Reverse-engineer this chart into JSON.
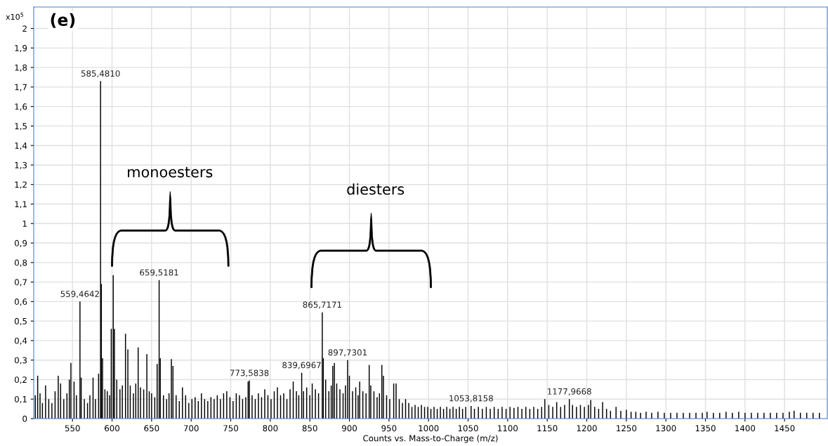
{
  "chart_data": {
    "type": "bar",
    "xlabel": "Counts vs. Mass-to-Charge (m/z)",
    "x": [
      503,
      506,
      509,
      512,
      516,
      520,
      524,
      528,
      532,
      535,
      539,
      543,
      546,
      548,
      552,
      555,
      559.4642,
      561,
      565,
      569,
      572,
      576,
      579,
      583,
      585.481,
      586.5,
      588,
      591,
      594,
      597,
      599,
      601.5,
      603,
      606,
      610,
      613,
      617,
      620,
      623,
      627,
      630,
      633,
      636,
      640,
      644,
      647,
      650,
      654,
      657,
      659.5181,
      661,
      665,
      669,
      672,
      675,
      677,
      681,
      685,
      689,
      693,
      697,
      701,
      705,
      709,
      713,
      717,
      721,
      725,
      729,
      733,
      737,
      741,
      745,
      749,
      753,
      757,
      761,
      765,
      769,
      772,
      773.5838,
      777,
      781,
      785,
      789,
      793,
      797,
      801,
      805,
      809,
      813,
      817,
      821,
      825,
      829,
      833,
      836,
      839.6967,
      842,
      846,
      850,
      853,
      857,
      861,
      865.7171,
      867,
      870,
      874,
      877,
      879,
      881,
      884,
      888,
      892,
      895,
      897.7301,
      900,
      904,
      908,
      911,
      913,
      917,
      921,
      925,
      927,
      931,
      935,
      938,
      941,
      943,
      947,
      951,
      956,
      959,
      963,
      967,
      971,
      975,
      979,
      983,
      987,
      991,
      995,
      999,
      1003,
      1007,
      1011,
      1015,
      1019,
      1023,
      1027,
      1031,
      1035,
      1039,
      1043,
      1047,
      1053.8158,
      1058,
      1063,
      1068,
      1073,
      1078,
      1083,
      1088,
      1093,
      1098,
      1103,
      1108,
      1113,
      1118,
      1123,
      1128,
      1133,
      1138,
      1143,
      1147,
      1152,
      1157,
      1162,
      1167,
      1172,
      1177.9668,
      1182,
      1187,
      1192,
      1197,
      1202,
      1205,
      1210,
      1215,
      1220,
      1225,
      1230,
      1237,
      1243,
      1250,
      1256,
      1262,
      1268,
      1275,
      1282,
      1290,
      1298,
      1306,
      1314,
      1322,
      1330,
      1338,
      1346,
      1352,
      1360,
      1368,
      1376,
      1384,
      1392,
      1400,
      1408,
      1416,
      1424,
      1432,
      1440,
      1448,
      1456,
      1462,
      1470,
      1478,
      1486,
      1494
    ],
    "values": [
      0.12,
      0.22,
      0.13,
      0.08,
      0.17,
      0.1,
      0.08,
      0.14,
      0.22,
      0.18,
      0.1,
      0.13,
      0.2,
      0.285,
      0.19,
      0.12,
      0.6,
      0.21,
      0.1,
      0.08,
      0.12,
      0.21,
      0.1,
      0.23,
      1.73,
      0.69,
      0.31,
      0.15,
      0.14,
      0.12,
      0.46,
      0.735,
      0.46,
      0.2,
      0.15,
      0.17,
      0.435,
      0.355,
      0.17,
      0.13,
      0.18,
      0.365,
      0.16,
      0.15,
      0.33,
      0.14,
      0.13,
      0.11,
      0.28,
      0.71,
      0.31,
      0.12,
      0.1,
      0.13,
      0.305,
      0.27,
      0.12,
      0.09,
      0.16,
      0.12,
      0.08,
      0.1,
      0.11,
      0.09,
      0.13,
      0.1,
      0.09,
      0.11,
      0.1,
      0.12,
      0.1,
      0.13,
      0.14,
      0.11,
      0.09,
      0.13,
      0.12,
      0.1,
      0.11,
      0.19,
      0.195,
      0.12,
      0.1,
      0.13,
      0.11,
      0.15,
      0.12,
      0.1,
      0.14,
      0.16,
      0.12,
      0.13,
      0.1,
      0.15,
      0.19,
      0.14,
      0.12,
      0.235,
      0.14,
      0.16,
      0.12,
      0.18,
      0.15,
      0.13,
      0.545,
      0.31,
      0.2,
      0.14,
      0.17,
      0.27,
      0.285,
      0.18,
      0.15,
      0.13,
      0.17,
      0.3,
      0.22,
      0.14,
      0.16,
      0.12,
      0.19,
      0.14,
      0.13,
      0.275,
      0.17,
      0.14,
      0.11,
      0.13,
      0.275,
      0.22,
      0.12,
      0.1,
      0.18,
      0.18,
      0.1,
      0.08,
      0.1,
      0.08,
      0.06,
      0.07,
      0.06,
      0.07,
      0.06,
      0.06,
      0.05,
      0.06,
      0.05,
      0.06,
      0.05,
      0.06,
      0.05,
      0.06,
      0.05,
      0.06,
      0.05,
      0.06,
      0.065,
      0.05,
      0.06,
      0.05,
      0.06,
      0.05,
      0.06,
      0.05,
      0.06,
      0.05,
      0.06,
      0.055,
      0.06,
      0.05,
      0.06,
      0.05,
      0.06,
      0.05,
      0.06,
      0.1,
      0.07,
      0.06,
      0.085,
      0.06,
      0.07,
      0.1,
      0.07,
      0.06,
      0.07,
      0.06,
      0.07,
      0.095,
      0.06,
      0.05,
      0.085,
      0.05,
      0.04,
      0.06,
      0.04,
      0.045,
      0.035,
      0.035,
      0.03,
      0.035,
      0.03,
      0.035,
      0.03,
      0.03,
      0.03,
      0.03,
      0.03,
      0.03,
      0.03,
      0.035,
      0.03,
      0.03,
      0.035,
      0.03,
      0.035,
      0.03,
      0.03,
      0.03,
      0.03,
      0.03,
      0.03,
      0.03,
      0.035,
      0.04,
      0.03,
      0.03,
      0.03,
      0.03
    ],
    "color": "#000000",
    "xlim": [
      501,
      1504
    ],
    "xticks": [
      550,
      600,
      650,
      700,
      750,
      800,
      850,
      900,
      950,
      1000,
      1050,
      1100,
      1150,
      1200,
      1250,
      1300,
      1350,
      1400,
      1450
    ],
    "ylim": [
      0,
      2.11
    ],
    "yticks": [
      0,
      {
        "value": 0.1,
        "label": "0,1"
      },
      {
        "value": 0.2,
        "label": "0,2"
      },
      {
        "value": 0.3,
        "label": "0,3"
      },
      {
        "value": 0.4,
        "label": "0,4"
      },
      {
        "value": 0.5,
        "label": "0,5"
      },
      {
        "value": 0.6,
        "label": "0,6"
      },
      {
        "value": 0.7,
        "label": "0,7"
      },
      {
        "value": 0.8,
        "label": "0,8"
      },
      {
        "value": 0.9,
        "label": "0,9"
      },
      1,
      {
        "value": 1.1,
        "label": "1,1"
      },
      {
        "value": 1.2,
        "label": "1,2"
      },
      {
        "value": 1.3,
        "label": "1,3"
      },
      {
        "value": 1.4,
        "label": "1,4"
      },
      {
        "value": 1.5,
        "label": "1,5"
      },
      {
        "value": 1.6,
        "label": "1,6"
      },
      {
        "value": 1.7,
        "label": "1,7"
      },
      {
        "value": 1.8,
        "label": "1,8"
      },
      {
        "value": 1.9,
        "label": "1,9"
      },
      2
    ],
    "grid": true,
    "legend": false,
    "annotations": [
      "(e)",
      "x10$^{5}$",
      "monoesters",
      "diesters",
      {
        "text": "559,4642",
        "x": 559.4642,
        "y": 0.6
      },
      {
        "text": "585,4810",
        "x": 585.481,
        "y": 1.73
      },
      {
        "text": "659,5181",
        "x": 659.5181,
        "y": 0.71
      },
      {
        "text": "773,5838",
        "x": 773.5838,
        "y": 0.195
      },
      {
        "text": "839,6967",
        "x": 839.6967,
        "y": 0.235
      },
      {
        "text": "865,7171",
        "x": 865.7171,
        "y": 0.545
      },
      {
        "text": "897,7301",
        "x": 897.7301,
        "y": 0.3
      },
      {
        "text": "1053,8158",
        "x": 1053.8158,
        "y": 0.065
      },
      {
        "text": "1177,9668",
        "x": 1177.9668,
        "y": 0.1
      }
    ]
  }
}
